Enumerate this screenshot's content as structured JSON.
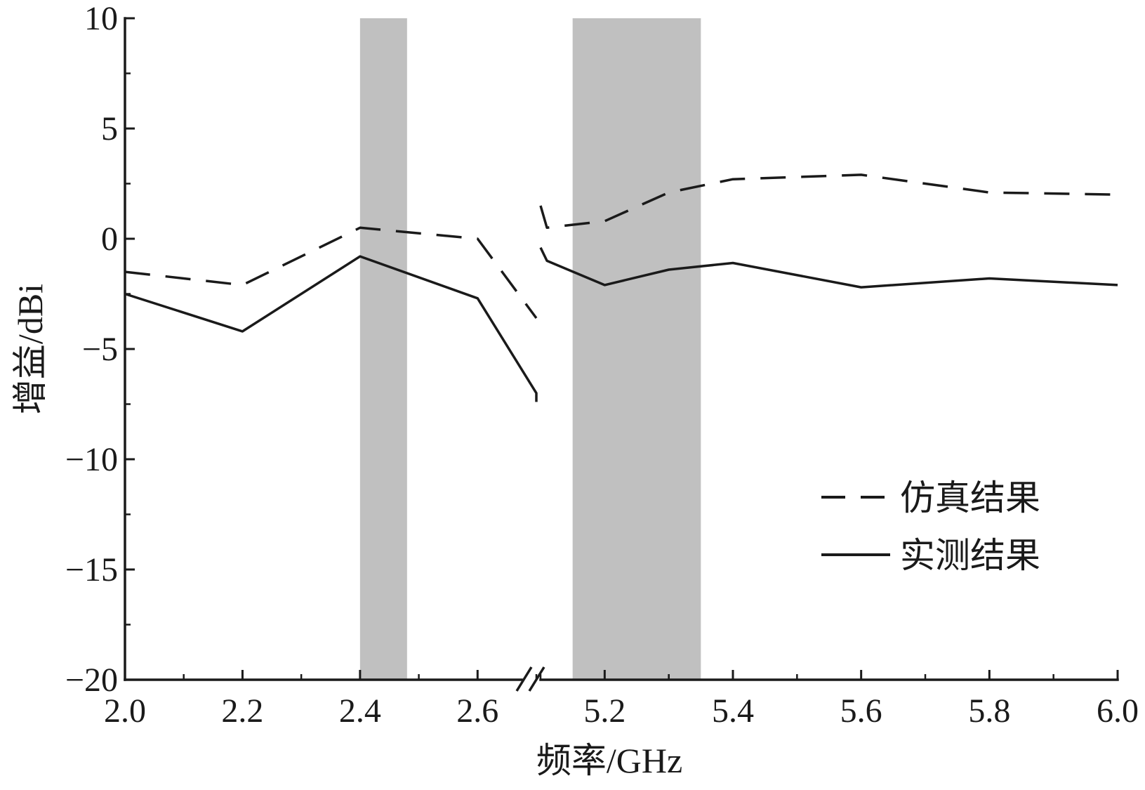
{
  "chart_data": {
    "type": "line",
    "xlabel": "频率/GHz",
    "ylabel": "增益/dBi",
    "ylim": [
      -20,
      10
    ],
    "yticks": [
      10,
      5,
      0,
      -5,
      -10,
      -15,
      -20
    ],
    "ytick_labels": [
      "10",
      "5",
      "0",
      "−5",
      "−10",
      "−15",
      "−20"
    ],
    "x_axis_break": "between 2.7 and 5.1",
    "x_segments": [
      {
        "range": [
          2.0,
          2.7
        ],
        "ticks": [
          2.0,
          2.2,
          2.4,
          2.6
        ],
        "tick_labels": [
          "2.0",
          "2.2",
          "2.4",
          "2.6"
        ]
      },
      {
        "range": [
          5.1,
          6.0
        ],
        "ticks": [
          5.2,
          5.4,
          5.6,
          5.8,
          6.0
        ],
        "tick_labels": [
          "5.2",
          "5.4",
          "5.6",
          "5.8",
          "6.0"
        ]
      }
    ],
    "shaded_bands": [
      {
        "x": [
          2.4,
          2.48
        ]
      },
      {
        "x": [
          5.15,
          5.35
        ]
      }
    ],
    "series": [
      {
        "name": "仿真结果",
        "style": "dashed",
        "color": "#1a1a1a",
        "segments": [
          [
            [
              2.0,
              -1.5
            ],
            [
              2.2,
              -2.1
            ],
            [
              2.4,
              0.5
            ],
            [
              2.6,
              0.0
            ],
            [
              2.7,
              -3.6
            ]
          ],
          [
            [
              5.1,
              1.5
            ],
            [
              5.11,
              0.5
            ],
            [
              5.2,
              0.8
            ],
            [
              5.3,
              2.1
            ],
            [
              5.4,
              2.7
            ],
            [
              5.6,
              2.9
            ],
            [
              5.8,
              2.1
            ],
            [
              6.0,
              2.0
            ]
          ]
        ]
      },
      {
        "name": "实测结果",
        "style": "solid",
        "color": "#1a1a1a",
        "segments": [
          [
            [
              2.0,
              -2.5
            ],
            [
              2.2,
              -4.2
            ],
            [
              2.4,
              -0.8
            ],
            [
              2.6,
              -2.7
            ],
            [
              2.7,
              -7.0
            ],
            [
              2.7,
              -7.4
            ]
          ],
          [
            [
              5.1,
              -0.4
            ],
            [
              5.11,
              -1.0
            ],
            [
              5.2,
              -2.1
            ],
            [
              5.3,
              -1.4
            ],
            [
              5.4,
              -1.1
            ],
            [
              5.6,
              -2.2
            ],
            [
              5.8,
              -1.8
            ],
            [
              6.0,
              -2.1
            ]
          ]
        ]
      }
    ],
    "legend": {
      "placement": "right-middle",
      "entries": [
        "仿真结果",
        "实测结果"
      ]
    },
    "grid": false,
    "band_color": "#c0c0c0"
  }
}
